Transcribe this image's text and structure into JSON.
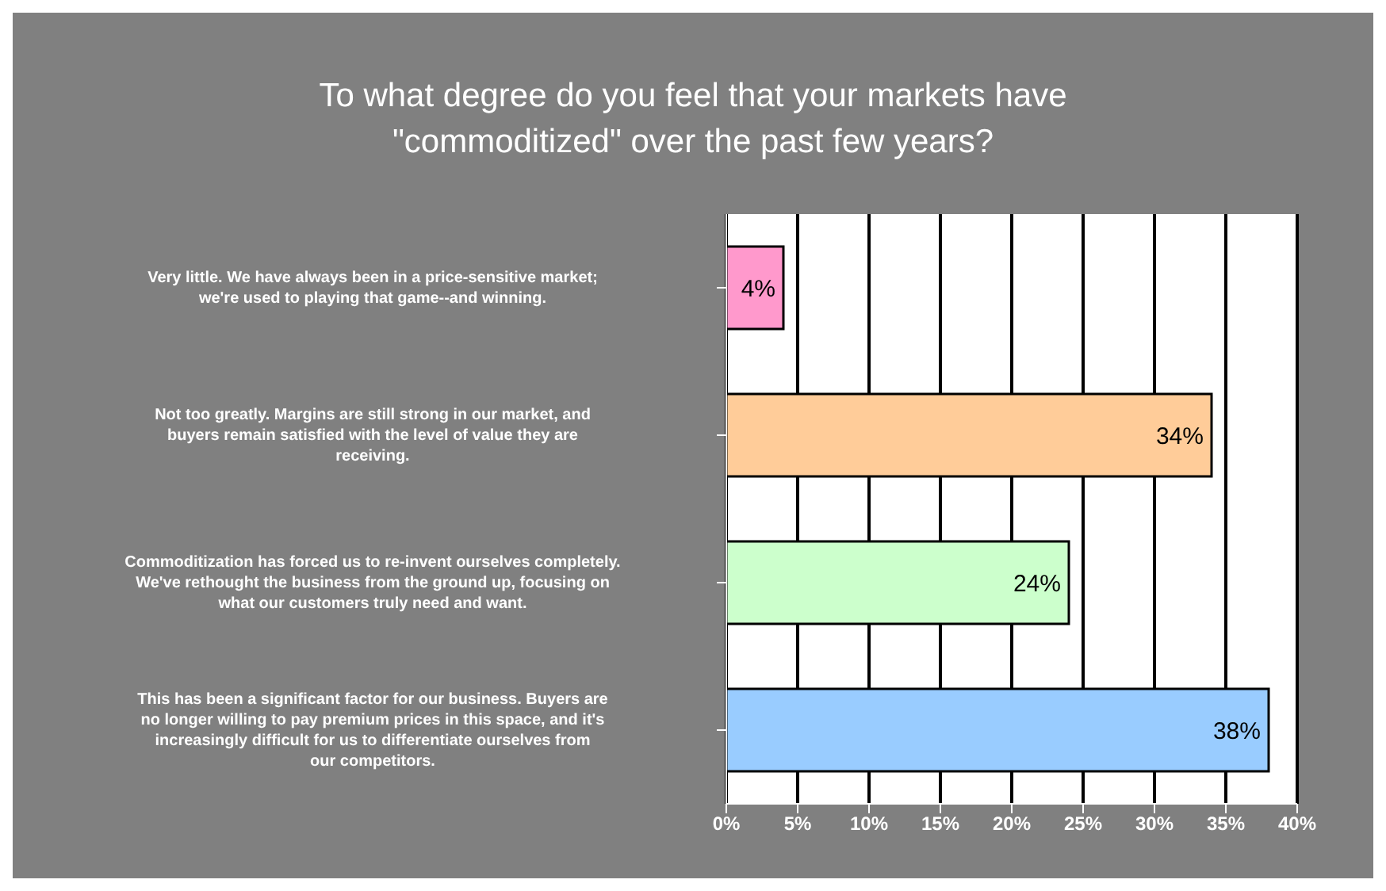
{
  "chart_data": {
    "type": "bar",
    "orientation": "horizontal",
    "title": "To what degree do you feel that your markets have \"commoditized\" over the past few years?",
    "categories": [
      "Very little. We have always been in a price-sensitive market; we're used to playing that game--and winning.",
      "Not too greatly. Margins are still strong in our market, and buyers remain satisfied with the level of value they are receiving.",
      "Commoditization has forced us to re-invent ourselves completely. We've rethought the business from the ground up, focusing on what our customers truly need and want.",
      "This has been a significant factor for our business. Buyers are no longer willing to pay premium prices in this space, and it's increasingly difficult for us to differentiate ourselves from our competitors."
    ],
    "values": [
      4,
      34,
      24,
      38
    ],
    "colors": [
      "#ff99cc",
      "#ffcc99",
      "#ccffcc",
      "#99ccff"
    ],
    "value_labels": [
      "4%",
      "34%",
      "24%",
      "38%"
    ],
    "xlim": [
      0,
      40
    ],
    "xticks": [
      {
        "value": 0,
        "label": "0%"
      },
      {
        "value": 5,
        "label": "5%"
      },
      {
        "value": 10,
        "label": "10%"
      },
      {
        "value": 15,
        "label": "15%"
      },
      {
        "value": 20,
        "label": "20%"
      },
      {
        "value": 25,
        "label": "25%"
      },
      {
        "value": 30,
        "label": "30%"
      },
      {
        "value": 35,
        "label": "35%"
      },
      {
        "value": 40,
        "label": "40%"
      }
    ],
    "grid": "x"
  }
}
